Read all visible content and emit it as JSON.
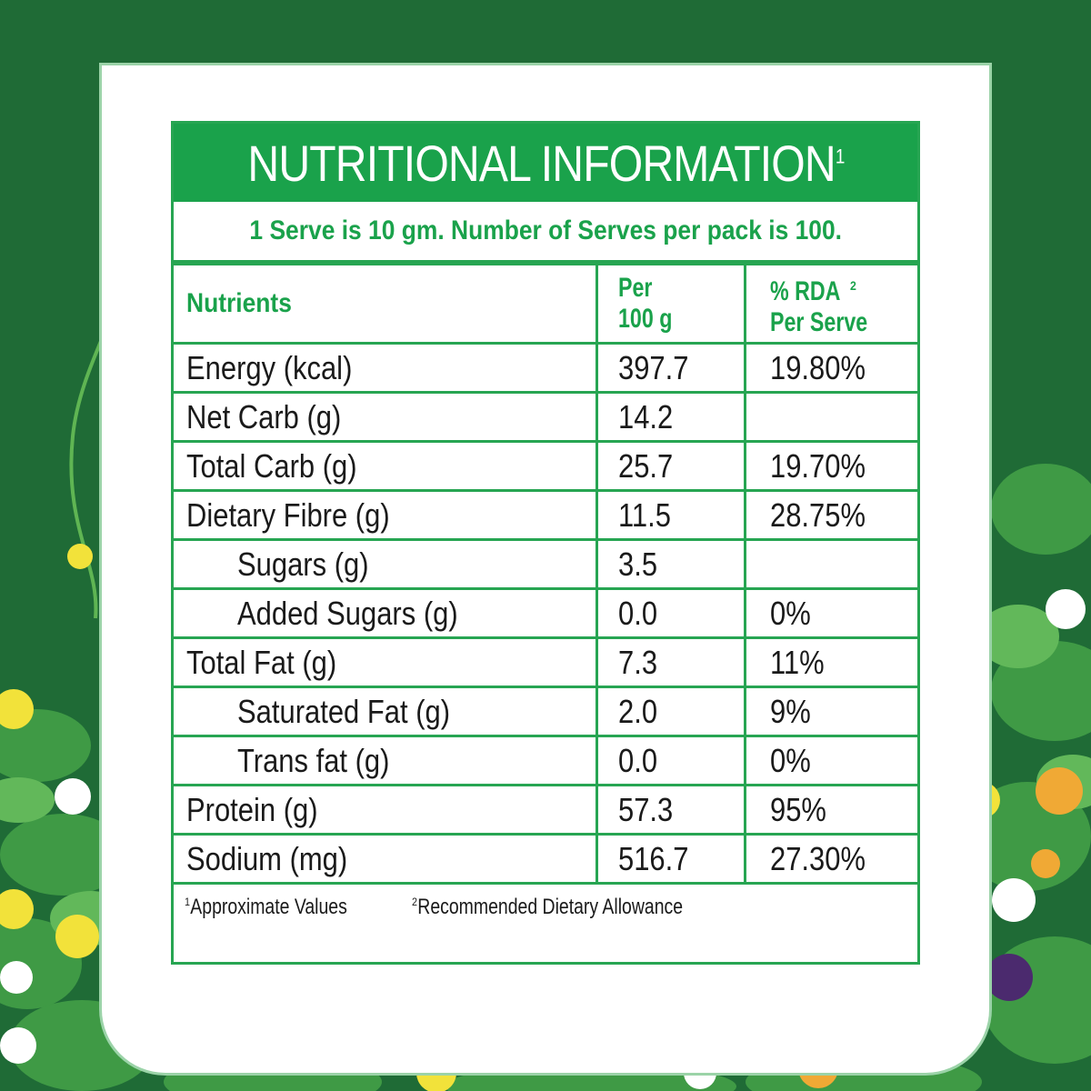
{
  "header": {
    "title": "NUTRITIONAL INFORMATION",
    "title_sup": "1",
    "serve_line": "1 Serve is 10 gm. Number of Serves per pack is 100."
  },
  "table": {
    "col_nutrients": "Nutrients",
    "col_per_line1": "Per",
    "col_per_line2": "100 g",
    "col_rda_line1": "% RDA",
    "col_rda_sup": "2",
    "col_rda_line2": "Per Serve",
    "rows": [
      {
        "name": "Energy (kcal)",
        "per100": "397.7",
        "rda": "19.80%"
      },
      {
        "name": "Net Carb (g)",
        "per100": "14.2",
        "rda": ""
      },
      {
        "name": "Total Carb (g)",
        "per100": "25.7",
        "rda": "19.70%"
      },
      {
        "name": "Dietary Fibre (g)",
        "per100": "11.5",
        "rda": "28.75%"
      },
      {
        "name": "Sugars (g)",
        "per100": "3.5",
        "rda": ""
      },
      {
        "name": "Added Sugars (g)",
        "per100": "0.0",
        "rda": "0%"
      },
      {
        "name": "Total Fat (g)",
        "per100": "7.3",
        "rda": "11%"
      },
      {
        "name": "Saturated Fat (g)",
        "per100": "2.0",
        "rda": "9%"
      },
      {
        "name": "Trans fat (g)",
        "per100": "0.0",
        "rda": "0%"
      },
      {
        "name": "Protein (g)",
        "per100": "57.3",
        "rda": "95%"
      },
      {
        "name": "Sodium (mg)",
        "per100": "516.7",
        "rda": "27.30%"
      }
    ]
  },
  "footnotes": {
    "note1_sup": "1",
    "note1": "Approximate Values",
    "note2_sup": "2",
    "note2": "Recommended Dietary Allowance"
  },
  "colors": {
    "background": "#1f6b36",
    "accent_green": "#1aa24b",
    "border_green": "#27a552"
  }
}
